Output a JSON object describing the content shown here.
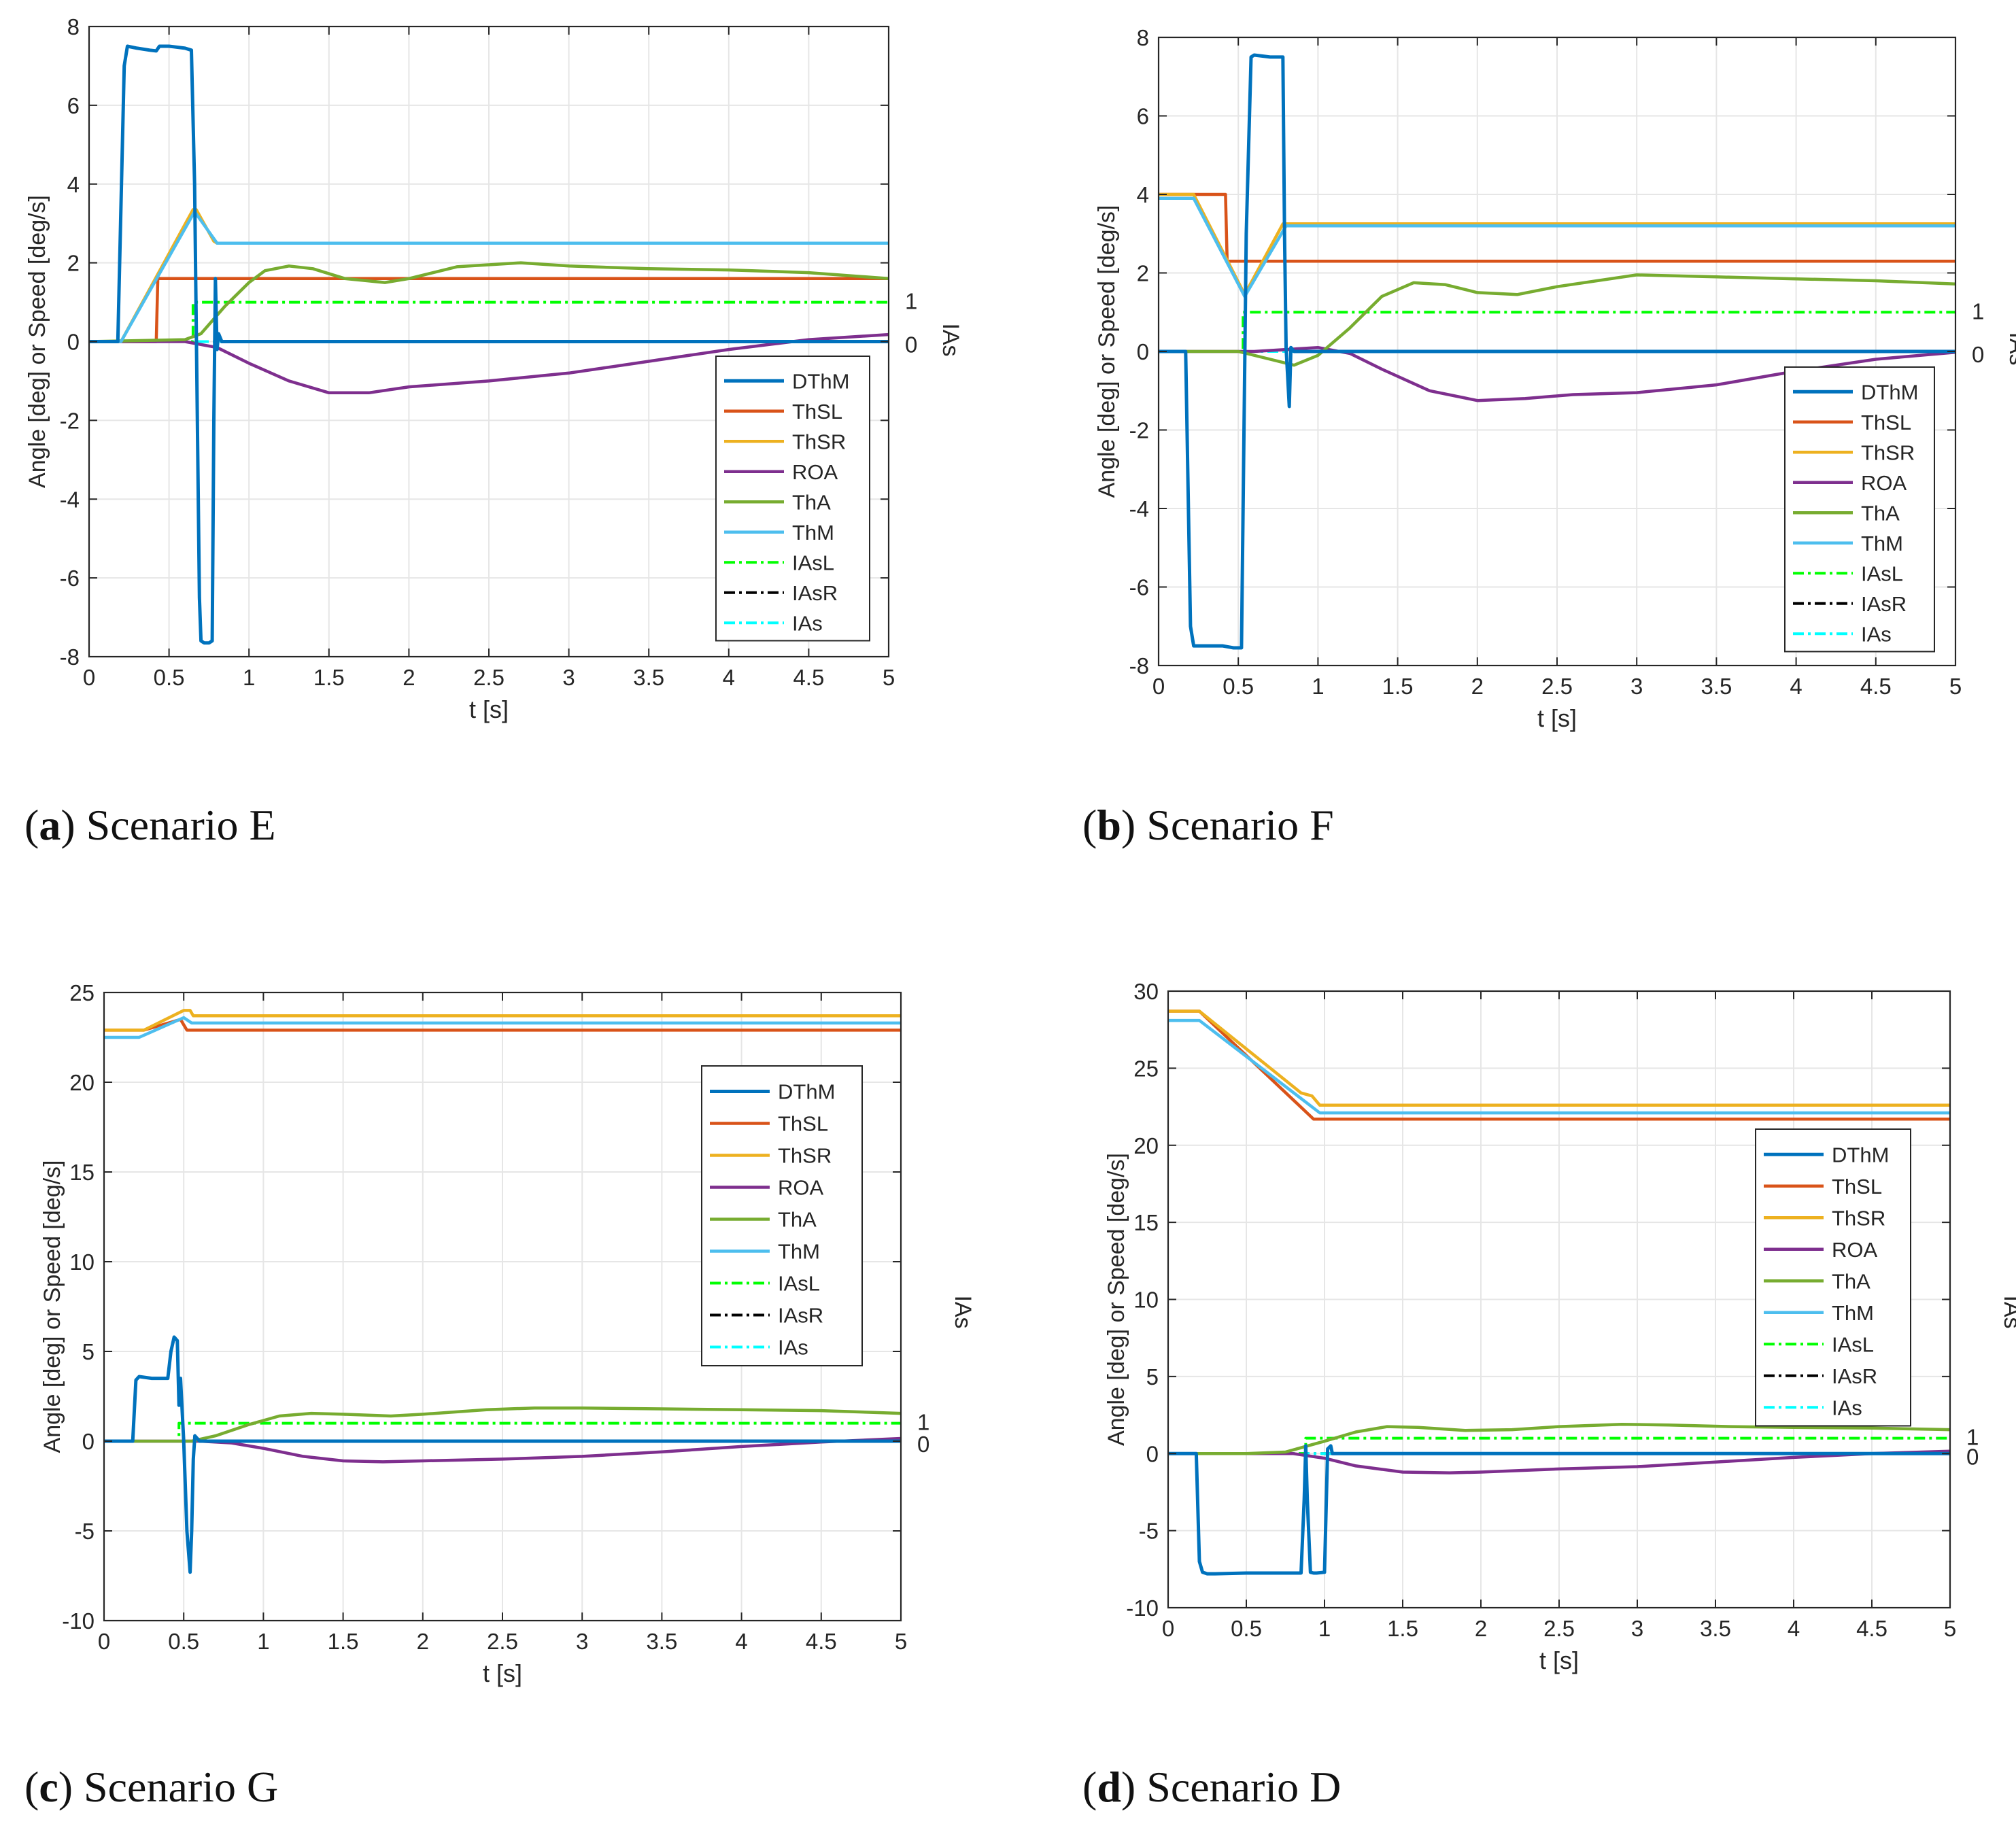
{
  "figure": {
    "legend_labels": [
      "DThM",
      "ThSL",
      "ThSR",
      "ROA",
      "ThA",
      "ThM",
      "IAsL",
      "IAsR",
      "IAs"
    ],
    "colors": {
      "DThM": "#0072bd",
      "ThSL": "#d95319",
      "ThSR": "#edb120",
      "ROA": "#7e2f8e",
      "ThA": "#77ac30",
      "ThM": "#4dbeee",
      "IAsL": "#00ff00",
      "IAsR": "#000000",
      "IAs": "#00ffff",
      "grid": "#e6e6e6",
      "axis": "#262626"
    }
  },
  "chart_data": [
    {
      "type": "line",
      "id": "a",
      "caption_letter": "a",
      "caption_text": "Scenario E",
      "xlabel": "t [s]",
      "ylabel": "Angle [deg] or Speed [deg/s]",
      "right_label": "IAs",
      "right_ticks": [
        "1",
        "0"
      ],
      "xlim": [
        0,
        5
      ],
      "ylim": [
        -8,
        8
      ],
      "xticks": [
        0,
        0.5,
        1,
        1.5,
        2,
        2.5,
        3,
        3.5,
        4,
        4.5,
        5
      ],
      "xtick_labels": [
        "0",
        "0.5",
        "1",
        "1.5",
        "2",
        "2.5",
        "3",
        "3.5",
        "4",
        "4.5",
        "5"
      ],
      "yticks": [
        -8,
        -6,
        -4,
        -2,
        0,
        2,
        4,
        6,
        8
      ],
      "ytick_labels": [
        "-8",
        "-6",
        "-4",
        "-2",
        "0",
        "2",
        "4",
        "6",
        "8"
      ],
      "legend_position": "lower-right",
      "series": [
        {
          "name": "DThM",
          "x": [
            0,
            0.18,
            0.22,
            0.24,
            0.3,
            0.38,
            0.42,
            0.44,
            0.5,
            0.6,
            0.64,
            0.66,
            0.69,
            0.7,
            0.72,
            0.75,
            0.77,
            0.78,
            0.79,
            0.8,
            0.81,
            0.83,
            5
          ],
          "y": [
            0,
            0,
            7.0,
            7.5,
            7.45,
            7.4,
            7.38,
            7.5,
            7.5,
            7.45,
            7.4,
            4.0,
            -6.5,
            -7.6,
            -7.65,
            -7.65,
            -7.6,
            -2.0,
            1.6,
            -0.2,
            0.2,
            0,
            0
          ]
        },
        {
          "name": "ThSL",
          "x": [
            0,
            0.42,
            0.43,
            5
          ],
          "y": [
            0,
            0,
            1.6,
            1.6
          ]
        },
        {
          "name": "ThSR",
          "x": [
            0,
            0.2,
            0.65,
            0.67,
            0.78,
            0.8,
            5
          ],
          "y": [
            0,
            0,
            3.35,
            3.35,
            2.55,
            2.5,
            2.5
          ]
        },
        {
          "name": "ROA",
          "x": [
            0,
            0.6,
            0.8,
            1.0,
            1.25,
            1.5,
            1.75,
            2.0,
            2.5,
            3.0,
            3.5,
            4.0,
            4.5,
            5.0
          ],
          "y": [
            0,
            0,
            -0.15,
            -0.55,
            -1.0,
            -1.3,
            -1.3,
            -1.15,
            -1.0,
            -0.8,
            -0.5,
            -0.2,
            0.05,
            0.18
          ]
        },
        {
          "name": "ThA",
          "x": [
            0,
            0.6,
            0.7,
            0.85,
            1.0,
            1.1,
            1.25,
            1.4,
            1.6,
            1.85,
            2.0,
            2.3,
            2.7,
            3.0,
            3.5,
            4.0,
            4.5,
            5.0
          ],
          "y": [
            0,
            0.05,
            0.2,
            0.9,
            1.5,
            1.8,
            1.92,
            1.85,
            1.6,
            1.5,
            1.6,
            1.9,
            2.0,
            1.92,
            1.85,
            1.82,
            1.75,
            1.6
          ]
        },
        {
          "name": "ThM",
          "x": [
            0,
            0.2,
            0.66,
            0.8,
            5
          ],
          "y": [
            0,
            0,
            3.3,
            2.5,
            2.5
          ]
        },
        {
          "name": "IAsL",
          "x": [
            0,
            0.65,
            0.65,
            5
          ],
          "y": [
            0,
            0,
            1,
            1
          ]
        },
        {
          "name": "IAsR",
          "x": [
            0,
            5
          ],
          "y": [
            0,
            0
          ]
        },
        {
          "name": "IAs",
          "x": [
            0,
            5
          ],
          "y": [
            0,
            0
          ]
        }
      ]
    },
    {
      "type": "line",
      "id": "b",
      "caption_letter": "b",
      "caption_text": "Scenario F",
      "xlabel": "t [s]",
      "ylabel": "Angle [deg] or Speed [deg/s]",
      "right_label": "IAs",
      "right_ticks": [
        "1",
        "0"
      ],
      "xlim": [
        0,
        5
      ],
      "ylim": [
        -8,
        8
      ],
      "xticks": [
        0,
        0.5,
        1,
        1.5,
        2,
        2.5,
        3,
        3.5,
        4,
        4.5,
        5
      ],
      "xtick_labels": [
        "0",
        "0.5",
        "1",
        "1.5",
        "2",
        "2.5",
        "3",
        "3.5",
        "4",
        "4.5",
        "5"
      ],
      "yticks": [
        -8,
        -6,
        -4,
        -2,
        0,
        2,
        4,
        6,
        8
      ],
      "ytick_labels": [
        "-8",
        "-6",
        "-4",
        "-2",
        "0",
        "2",
        "4",
        "6",
        "8"
      ],
      "legend_position": "lower-right",
      "series": [
        {
          "name": "DThM",
          "x": [
            0,
            0.17,
            0.2,
            0.22,
            0.3,
            0.4,
            0.47,
            0.52,
            0.55,
            0.58,
            0.6,
            0.7,
            0.78,
            0.79,
            0.8,
            0.82,
            0.83,
            0.85,
            5
          ],
          "y": [
            0,
            0,
            -7.0,
            -7.5,
            -7.5,
            -7.5,
            -7.55,
            -7.55,
            3.0,
            7.5,
            7.55,
            7.5,
            7.5,
            3.0,
            0.1,
            -1.4,
            0.1,
            0,
            0
          ]
        },
        {
          "name": "ThSL",
          "x": [
            0,
            0.42,
            0.43,
            5
          ],
          "y": [
            4.0,
            4.0,
            2.3,
            2.3
          ]
        },
        {
          "name": "ThSR",
          "x": [
            0,
            0.22,
            0.54,
            0.78,
            0.8,
            5
          ],
          "y": [
            4.0,
            4.0,
            1.45,
            3.25,
            3.25,
            3.25
          ]
        },
        {
          "name": "ROA",
          "x": [
            0,
            0.6,
            0.8,
            1.0,
            1.2,
            1.4,
            1.7,
            2.0,
            2.3,
            2.6,
            3.0,
            3.5,
            4.0,
            4.5,
            5.0
          ],
          "y": [
            0,
            0,
            0.05,
            0.1,
            -0.05,
            -0.45,
            -1.0,
            -1.25,
            -1.2,
            -1.1,
            -1.05,
            -0.85,
            -0.5,
            -0.2,
            -0.02
          ]
        },
        {
          "name": "ThA",
          "x": [
            0,
            0.5,
            0.7,
            0.85,
            1.0,
            1.2,
            1.4,
            1.6,
            1.8,
            2.0,
            2.25,
            2.5,
            3.0,
            3.5,
            4.0,
            4.5,
            5.0
          ],
          "y": [
            0,
            0,
            -0.2,
            -0.35,
            -0.1,
            0.6,
            1.4,
            1.75,
            1.7,
            1.5,
            1.45,
            1.65,
            1.95,
            1.9,
            1.85,
            1.8,
            1.72
          ]
        },
        {
          "name": "ThM",
          "x": [
            0,
            0.22,
            0.54,
            0.8,
            5
          ],
          "y": [
            3.9,
            3.9,
            1.4,
            3.2,
            3.2
          ]
        },
        {
          "name": "IAsL",
          "x": [
            0,
            0.53,
            0.53,
            5
          ],
          "y": [
            0,
            0,
            1,
            1
          ]
        },
        {
          "name": "IAsR",
          "x": [
            0,
            5
          ],
          "y": [
            0,
            0
          ]
        },
        {
          "name": "IAs",
          "x": [
            0,
            5
          ],
          "y": [
            0,
            0
          ]
        }
      ]
    },
    {
      "type": "line",
      "id": "c",
      "caption_letter": "c",
      "caption_text": "Scenario G",
      "xlabel": "t [s]",
      "ylabel": "Angle [deg] or Speed [deg/s]",
      "right_label": "IAs",
      "right_ticks": [
        "1",
        "0"
      ],
      "xlim": [
        0,
        5
      ],
      "ylim": [
        -10,
        25
      ],
      "xticks": [
        0,
        0.5,
        1,
        1.5,
        2,
        2.5,
        3,
        3.5,
        4,
        4.5,
        5
      ],
      "xtick_labels": [
        "0",
        "0.5",
        "1",
        "1.5",
        "2",
        "2.5",
        "3",
        "3.5",
        "4",
        "4.5",
        "5"
      ],
      "yticks": [
        -10,
        -5,
        0,
        5,
        10,
        15,
        20,
        25
      ],
      "ytick_labels": [
        "-10",
        "-5",
        "0",
        "5",
        "10",
        "15",
        "20",
        "25"
      ],
      "legend_position": "right",
      "series": [
        {
          "name": "DThM",
          "x": [
            0,
            0.18,
            0.2,
            0.22,
            0.3,
            0.4,
            0.42,
            0.44,
            0.46,
            0.47,
            0.48,
            0.5,
            0.52,
            0.54,
            0.55,
            0.56,
            0.57,
            0.6,
            5
          ],
          "y": [
            0,
            0,
            3.4,
            3.6,
            3.5,
            3.5,
            5.0,
            5.8,
            5.6,
            2.0,
            3.5,
            0,
            -5.0,
            -7.3,
            -5.0,
            -1.0,
            0.3,
            0,
            0
          ]
        },
        {
          "name": "ThSL",
          "x": [
            0,
            0.25,
            0.48,
            0.52,
            5
          ],
          "y": [
            22.9,
            22.9,
            23.5,
            22.9,
            22.9
          ]
        },
        {
          "name": "ThSR",
          "x": [
            0,
            0.25,
            0.5,
            0.54,
            0.56,
            5
          ],
          "y": [
            22.9,
            22.9,
            24.0,
            24.0,
            23.7,
            23.7
          ]
        },
        {
          "name": "ROA",
          "x": [
            0,
            0.6,
            0.8,
            1.0,
            1.25,
            1.5,
            1.75,
            2.0,
            2.5,
            3.0,
            3.5,
            4.0,
            4.5,
            5.0
          ],
          "y": [
            0,
            0,
            -0.1,
            -0.4,
            -0.85,
            -1.1,
            -1.15,
            -1.1,
            -1.0,
            -0.85,
            -0.6,
            -0.3,
            -0.05,
            0.15
          ]
        },
        {
          "name": "ThA",
          "x": [
            0,
            0.55,
            0.7,
            0.9,
            1.1,
            1.3,
            1.5,
            1.8,
            2.0,
            2.4,
            2.7,
            3.0,
            3.5,
            4.0,
            4.5,
            5.0
          ],
          "y": [
            0,
            0,
            0.3,
            0.9,
            1.4,
            1.55,
            1.5,
            1.4,
            1.5,
            1.75,
            1.85,
            1.85,
            1.8,
            1.75,
            1.7,
            1.55
          ]
        },
        {
          "name": "ThM",
          "x": [
            0,
            0.22,
            0.5,
            0.55,
            5
          ],
          "y": [
            22.5,
            22.5,
            23.6,
            23.3,
            23.3
          ]
        },
        {
          "name": "IAsL",
          "x": [
            0,
            0.47,
            0.47,
            5
          ],
          "y": [
            0,
            0,
            1,
            1
          ]
        },
        {
          "name": "IAsR",
          "x": [
            0,
            5
          ],
          "y": [
            0,
            0
          ]
        },
        {
          "name": "IAs",
          "x": [
            0,
            5
          ],
          "y": [
            0,
            0
          ]
        }
      ]
    },
    {
      "type": "line",
      "id": "d",
      "caption_letter": "d",
      "caption_text": "Scenario D",
      "xlabel": "t [s]",
      "ylabel": "Angle [deg] or Speed [deg/s]",
      "right_label": "IAs",
      "right_ticks": [
        "1",
        "0"
      ],
      "xlim": [
        0,
        5
      ],
      "ylim": [
        -10,
        30
      ],
      "xticks": [
        0,
        0.5,
        1,
        1.5,
        2,
        2.5,
        3,
        3.5,
        4,
        4.5,
        5
      ],
      "xtick_labels": [
        "0",
        "0.5",
        "1",
        "1.5",
        "2",
        "2.5",
        "3",
        "3.5",
        "4",
        "4.5",
        "5"
      ],
      "yticks": [
        -10,
        -5,
        0,
        5,
        10,
        15,
        20,
        25,
        30
      ],
      "ytick_labels": [
        "-10",
        "-5",
        "0",
        "5",
        "10",
        "15",
        "20",
        "25",
        "30"
      ],
      "legend_position": "right",
      "series": [
        {
          "name": "DThM",
          "x": [
            0,
            0.18,
            0.2,
            0.22,
            0.25,
            0.3,
            0.5,
            0.85,
            0.87,
            0.88,
            0.89,
            0.91,
            0.93,
            0.95,
            1.0,
            1.02,
            1.04,
            1.05,
            5
          ],
          "y": [
            0,
            0,
            -7.0,
            -7.7,
            -7.8,
            -7.8,
            -7.75,
            -7.75,
            -3.0,
            0.5,
            -3.0,
            -7.7,
            -7.75,
            -7.75,
            -7.7,
            0.3,
            0.5,
            0,
            0
          ]
        },
        {
          "name": "ThSL",
          "x": [
            0,
            0.2,
            0.93,
            5
          ],
          "y": [
            28.7,
            28.7,
            21.7,
            21.7
          ]
        },
        {
          "name": "ThSR",
          "x": [
            0,
            0.2,
            0.85,
            0.92,
            0.97,
            5
          ],
          "y": [
            28.7,
            28.7,
            23.4,
            23.2,
            22.6,
            22.6
          ]
        },
        {
          "name": "ROA",
          "x": [
            0,
            0.8,
            1.0,
            1.2,
            1.5,
            1.8,
            2.0,
            2.5,
            3.0,
            3.5,
            4.0,
            4.5,
            5.0
          ],
          "y": [
            0,
            0,
            -0.3,
            -0.8,
            -1.2,
            -1.25,
            -1.2,
            -1.0,
            -0.85,
            -0.55,
            -0.25,
            0,
            0.15
          ]
        },
        {
          "name": "ThA",
          "x": [
            0,
            0.5,
            0.75,
            1.0,
            1.2,
            1.4,
            1.6,
            1.9,
            2.2,
            2.5,
            2.9,
            3.2,
            3.6,
            4.0,
            4.5,
            5.0
          ],
          "y": [
            0,
            0,
            0.1,
            0.8,
            1.4,
            1.75,
            1.7,
            1.5,
            1.55,
            1.75,
            1.9,
            1.85,
            1.75,
            1.7,
            1.65,
            1.55
          ]
        },
        {
          "name": "ThM",
          "x": [
            0,
            0.2,
            0.97,
            5
          ],
          "y": [
            28.1,
            28.1,
            22.1,
            22.1
          ]
        },
        {
          "name": "IAsL",
          "x": [
            0,
            0.88,
            0.88,
            5
          ],
          "y": [
            0,
            0,
            1,
            1
          ]
        },
        {
          "name": "IAsR",
          "x": [
            0,
            5
          ],
          "y": [
            0,
            0
          ]
        },
        {
          "name": "IAs",
          "x": [
            0,
            5
          ],
          "y": [
            0,
            0
          ]
        }
      ]
    }
  ]
}
